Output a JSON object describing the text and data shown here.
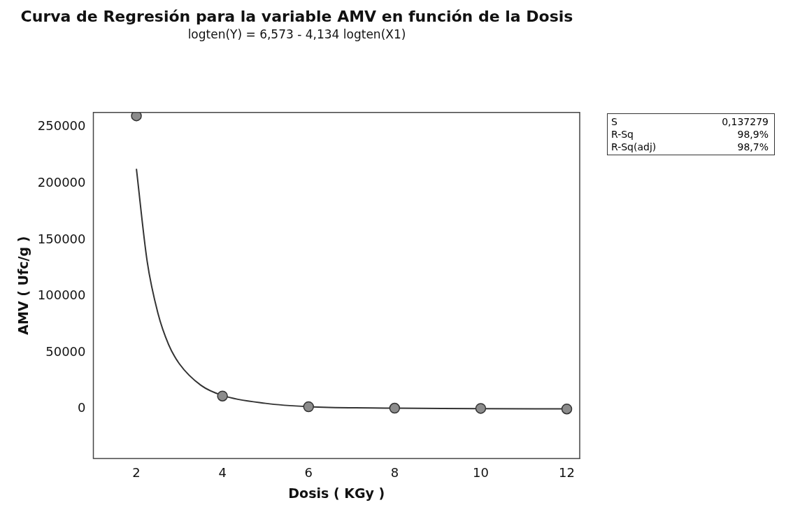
{
  "chart_data": {
    "type": "scatter",
    "title": "Curva de Regresión para la variable AMV en función de la Dosis",
    "subtitle": "logten(Y) = 6,573 - 4,134 logten(X1)",
    "xlabel": "Dosis ( KGy )",
    "ylabel": "AMV ( Ufc/g )",
    "x": [
      2,
      4,
      6,
      8,
      10,
      12
    ],
    "series": [
      {
        "color": "#8c8c8c",
        "values": [
          260000,
          11500,
          2000,
          700,
          500,
          0
        ],
        "marker": "circle"
      },
      {
        "type": "line",
        "color": "#333333",
        "x": [
          2,
          2.25,
          2.5,
          2.75,
          3,
          3.5,
          4,
          5,
          6,
          8,
          10,
          12
        ],
        "values": [
          213000,
          131000,
          85000,
          57000,
          40000,
          21000,
          12000,
          5000,
          2000,
          700,
          300,
          100
        ],
        "marker": "none",
        "line_style": "solid"
      }
    ],
    "xlim": [
      1,
      12.3
    ],
    "xticks": [
      2,
      4,
      6,
      8,
      10,
      12
    ],
    "ylim": [
      -44000,
      263000
    ],
    "yticks": [
      0,
      50000,
      100000,
      150000,
      200000,
      250000
    ],
    "grid": false,
    "legend": false,
    "annotations": [
      "S",
      "0,137279",
      "R-Sq",
      "98,9%",
      "R-Sq(adj)",
      "98,7%"
    ]
  }
}
